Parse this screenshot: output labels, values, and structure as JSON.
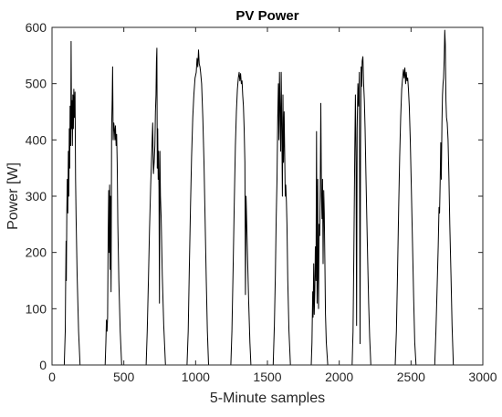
{
  "chart_data": {
    "type": "line",
    "title": "PV Power",
    "xlabel": "5-Minute samples",
    "ylabel": "Power [W]",
    "xlim": [
      0,
      3000
    ],
    "ylim": [
      0,
      600
    ],
    "xticks": [
      0,
      500,
      1000,
      1500,
      2000,
      2500,
      3000
    ],
    "yticks": [
      0,
      100,
      200,
      300,
      400,
      500,
      600
    ],
    "grid": false,
    "legend": "none",
    "colors": {
      "line": "#000000",
      "axis": "#262626",
      "background": "#ffffff"
    },
    "series": [
      {
        "points": [
          [
            0,
            0
          ],
          [
            85,
            0
          ],
          [
            92,
            60
          ],
          [
            95,
            140
          ],
          [
            98,
            220
          ],
          [
            100,
            150
          ],
          [
            103,
            270
          ],
          [
            106,
            330
          ],
          [
            110,
            270
          ],
          [
            114,
            380
          ],
          [
            117,
            300
          ],
          [
            120,
            420
          ],
          [
            123,
            350
          ],
          [
            126,
            460
          ],
          [
            130,
            390
          ],
          [
            133,
            575
          ],
          [
            136,
            420
          ],
          [
            139,
            470
          ],
          [
            142,
            390
          ],
          [
            145,
            480
          ],
          [
            149,
            420
          ],
          [
            152,
            490
          ],
          [
            156,
            440
          ],
          [
            160,
            485
          ],
          [
            164,
            330
          ],
          [
            168,
            260
          ],
          [
            175,
            160
          ],
          [
            185,
            60
          ],
          [
            195,
            0
          ],
          [
            370,
            0
          ],
          [
            375,
            40
          ],
          [
            379,
            80
          ],
          [
            383,
            60
          ],
          [
            387,
            85
          ],
          [
            391,
            230
          ],
          [
            395,
            310
          ],
          [
            398,
            200
          ],
          [
            401,
            320
          ],
          [
            404,
            170
          ],
          [
            407,
            300
          ],
          [
            411,
            130
          ],
          [
            415,
            420
          ],
          [
            419,
            470
          ],
          [
            422,
            530
          ],
          [
            426,
            400
          ],
          [
            430,
            430
          ],
          [
            434,
            420
          ],
          [
            438,
            400
          ],
          [
            442,
            425
          ],
          [
            446,
            390
          ],
          [
            450,
            410
          ],
          [
            454,
            360
          ],
          [
            458,
            250
          ],
          [
            465,
            150
          ],
          [
            475,
            60
          ],
          [
            485,
            0
          ],
          [
            655,
            0
          ],
          [
            663,
            60
          ],
          [
            671,
            150
          ],
          [
            679,
            240
          ],
          [
            687,
            320
          ],
          [
            695,
            380
          ],
          [
            701,
            430
          ],
          [
            706,
            340
          ],
          [
            711,
            360
          ],
          [
            716,
            390
          ],
          [
            720,
            450
          ],
          [
            724,
            480
          ],
          [
            727,
            540
          ],
          [
            730,
            563
          ],
          [
            733,
            350
          ],
          [
            736,
            420
          ],
          [
            739,
            330
          ],
          [
            742,
            380
          ],
          [
            745,
            310
          ],
          [
            748,
            110
          ],
          [
            751,
            380
          ],
          [
            755,
            300
          ],
          [
            760,
            260
          ],
          [
            768,
            160
          ],
          [
            778,
            70
          ],
          [
            790,
            0
          ],
          [
            940,
            0
          ],
          [
            948,
            60
          ],
          [
            956,
            170
          ],
          [
            964,
            280
          ],
          [
            972,
            370
          ],
          [
            980,
            440
          ],
          [
            988,
            480
          ],
          [
            996,
            510
          ],
          [
            1004,
            520
          ],
          [
            1010,
            545
          ],
          [
            1015,
            530
          ],
          [
            1020,
            560
          ],
          [
            1025,
            535
          ],
          [
            1030,
            530
          ],
          [
            1035,
            520
          ],
          [
            1042,
            500
          ],
          [
            1050,
            440
          ],
          [
            1058,
            360
          ],
          [
            1066,
            260
          ],
          [
            1074,
            150
          ],
          [
            1082,
            60
          ],
          [
            1090,
            0
          ],
          [
            1245,
            0
          ],
          [
            1253,
            60
          ],
          [
            1261,
            170
          ],
          [
            1269,
            290
          ],
          [
            1277,
            390
          ],
          [
            1284,
            450
          ],
          [
            1291,
            490
          ],
          [
            1297,
            510
          ],
          [
            1303,
            520
          ],
          [
            1308,
            505
          ],
          [
            1313,
            518
          ],
          [
            1318,
            500
          ],
          [
            1323,
            505
          ],
          [
            1328,
            480
          ],
          [
            1333,
            460
          ],
          [
            1338,
            420
          ],
          [
            1343,
            360
          ],
          [
            1347,
            125
          ],
          [
            1351,
            300
          ],
          [
            1357,
            240
          ],
          [
            1363,
            180
          ],
          [
            1370,
            110
          ],
          [
            1378,
            40
          ],
          [
            1385,
            0
          ],
          [
            1540,
            0
          ],
          [
            1548,
            70
          ],
          [
            1555,
            160
          ],
          [
            1561,
            260
          ],
          [
            1567,
            330
          ],
          [
            1572,
            440
          ],
          [
            1576,
            500
          ],
          [
            1580,
            400
          ],
          [
            1584,
            520
          ],
          [
            1588,
            460
          ],
          [
            1592,
            380
          ],
          [
            1596,
            520
          ],
          [
            1600,
            430
          ],
          [
            1604,
            300
          ],
          [
            1608,
            480
          ],
          [
            1612,
            360
          ],
          [
            1616,
            450
          ],
          [
            1620,
            380
          ],
          [
            1624,
            300
          ],
          [
            1628,
            320
          ],
          [
            1632,
            290
          ],
          [
            1636,
            250
          ],
          [
            1642,
            150
          ],
          [
            1650,
            60
          ],
          [
            1660,
            0
          ],
          [
            1805,
            0
          ],
          [
            1810,
            40
          ],
          [
            1815,
            130
          ],
          [
            1818,
            85
          ],
          [
            1822,
            180
          ],
          [
            1826,
            90
          ],
          [
            1830,
            130
          ],
          [
            1834,
            210
          ],
          [
            1838,
            150
          ],
          [
            1842,
            415
          ],
          [
            1846,
            110
          ],
          [
            1850,
            330
          ],
          [
            1853,
            160
          ],
          [
            1856,
            100
          ],
          [
            1860,
            250
          ],
          [
            1864,
            230
          ],
          [
            1868,
            320
          ],
          [
            1872,
            465
          ],
          [
            1876,
            300
          ],
          [
            1880,
            260
          ],
          [
            1884,
            330
          ],
          [
            1888,
            180
          ],
          [
            1892,
            310
          ],
          [
            1896,
            270
          ],
          [
            1900,
            190
          ],
          [
            1904,
            90
          ],
          [
            1910,
            40
          ],
          [
            1920,
            0
          ],
          [
            2090,
            0
          ],
          [
            2096,
            60
          ],
          [
            2102,
            200
          ],
          [
            2108,
            380
          ],
          [
            2113,
            480
          ],
          [
            2117,
            360
          ],
          [
            2121,
            70
          ],
          [
            2125,
            420
          ],
          [
            2130,
            500
          ],
          [
            2135,
            460
          ],
          [
            2140,
            520
          ],
          [
            2145,
            38
          ],
          [
            2148,
            380
          ],
          [
            2152,
            530
          ],
          [
            2156,
            495
          ],
          [
            2160,
            540
          ],
          [
            2165,
            548
          ],
          [
            2170,
            500
          ],
          [
            2175,
            470
          ],
          [
            2180,
            420
          ],
          [
            2186,
            340
          ],
          [
            2192,
            260
          ],
          [
            2198,
            190
          ],
          [
            2205,
            110
          ],
          [
            2212,
            50
          ],
          [
            2220,
            0
          ],
          [
            2390,
            0
          ],
          [
            2398,
            60
          ],
          [
            2406,
            160
          ],
          [
            2414,
            280
          ],
          [
            2421,
            370
          ],
          [
            2428,
            440
          ],
          [
            2435,
            490
          ],
          [
            2441,
            510
          ],
          [
            2447,
            525
          ],
          [
            2452,
            510
          ],
          [
            2457,
            528
          ],
          [
            2462,
            500
          ],
          [
            2467,
            520
          ],
          [
            2472,
            505
          ],
          [
            2477,
            510
          ],
          [
            2482,
            490
          ],
          [
            2488,
            460
          ],
          [
            2495,
            400
          ],
          [
            2502,
            320
          ],
          [
            2510,
            220
          ],
          [
            2518,
            120
          ],
          [
            2526,
            40
          ],
          [
            2535,
            0
          ],
          [
            2665,
            0
          ],
          [
            2673,
            60
          ],
          [
            2681,
            130
          ],
          [
            2689,
            210
          ],
          [
            2695,
            280
          ],
          [
            2699,
            270
          ],
          [
            2703,
            330
          ],
          [
            2707,
            395
          ],
          [
            2711,
            330
          ],
          [
            2715,
            430
          ],
          [
            2719,
            480
          ],
          [
            2723,
            500
          ],
          [
            2727,
            510
          ],
          [
            2731,
            545
          ],
          [
            2735,
            595
          ],
          [
            2739,
            570
          ],
          [
            2743,
            470
          ],
          [
            2747,
            440
          ],
          [
            2752,
            430
          ],
          [
            2758,
            400
          ],
          [
            2764,
            330
          ],
          [
            2770,
            250
          ],
          [
            2778,
            160
          ],
          [
            2786,
            70
          ],
          [
            2795,
            0
          ],
          [
            2850,
            0
          ]
        ]
      }
    ]
  }
}
